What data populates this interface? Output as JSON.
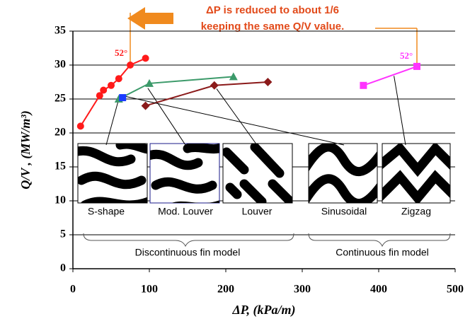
{
  "chart_data": {
    "type": "scatter",
    "annotations": [
      "ΔP is reduced to about 1/6",
      "keeping the same Q/V value.",
      "52°",
      "52°",
      "Discontinuous fin model",
      "Continuous fin model"
    ],
    "x_label": "ΔP, (kPa/m)",
    "y_label": "Q/V ,  (MW/m³)",
    "xlim": [
      0,
      500
    ],
    "xticks": [
      0,
      100,
      200,
      300,
      400,
      500
    ],
    "ylim": [
      0,
      35
    ],
    "yticks": [
      0,
      5,
      10,
      15,
      20,
      25,
      30,
      35
    ],
    "grid": true,
    "series": [
      {
        "name": "S-shape",
        "color": "#ff1a1a",
        "marker": "circle",
        "x": [
          10,
          35,
          40,
          50,
          60,
          75,
          95
        ],
        "values": [
          21,
          25.5,
          26.3,
          27,
          28,
          30,
          31
        ]
      },
      {
        "name": "Mod. Louver",
        "color": "#3c9a6a",
        "marker": "triangle",
        "x": [
          60,
          100,
          210
        ],
        "values": [
          25,
          27.3,
          28.3
        ]
      },
      {
        "name": "Louver",
        "color": "#8b1a1a",
        "marker": "diamond",
        "x": [
          95,
          185,
          255
        ],
        "values": [
          24,
          27,
          27.5
        ]
      },
      {
        "name": "Sinusoidal",
        "color": "#1a3cff",
        "marker": "square",
        "x": [
          65
        ],
        "values": [
          25.2
        ]
      },
      {
        "name": "Zigzag",
        "color": "#ff33ff",
        "marker": "square",
        "x": [
          380,
          450
        ],
        "values": [
          27,
          29.8
        ]
      }
    ]
  }
}
